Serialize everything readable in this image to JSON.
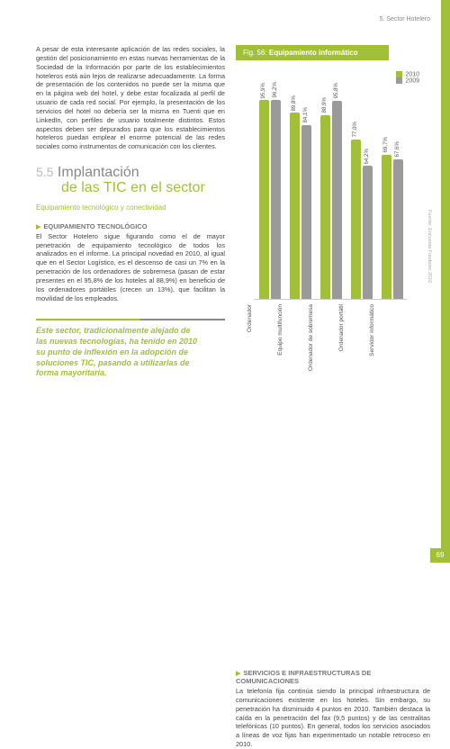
{
  "page": {
    "header": "5. Sector Hotelero",
    "number": "69"
  },
  "left": {
    "para1": "A pesar de esta interesante aplicación de las redes sociales, la gestión del posicionamiento en estas nuevas herramientas de la Sociedad de la Información por parte de los establecimientos hoteleros está aún lejos de realizarse adecuadamente. La forma de presentación de los contenidos no puede ser la misma que en la página web del hotel, y debe estar focalizada al perfil de usuario de cada red social. Por ejemplo, la presentación de los servicios del hotel no debería ser la misma en Tuenti que en LinkedIn, con perfiles de usuario totalmente distintos. Estos aspectos deben ser depurados para que los establecimientos hoteleros puedan emplear el enorme potencial de las redes sociales como instrumentos de comunicación con los clientes.",
    "section_num": "5.5",
    "section_title_1": "Implantación",
    "section_title_2": "de las TIC en el sector",
    "subtitle": "Equipamiento tecnológico y conectividad",
    "subhead1": "EQUIPAMIENTO TECNOLÓGICO",
    "para2": "El Sector Hotelero sigue figurando como el de mayor penetración de equipamiento tecnológico de todos los analizados en el informe. La principal novedad en 2010, al igual que en el Sector Logístico, es el descenso de casi un 7% en la penetración de los ordenadores de sobremesa (pasan de estar presentes en el 95,8% de los hoteles al 88,9%) en beneficio de los ordenadores portátiles (crecen un 13%), que facilitan la movilidad de los empleados.",
    "pullquote": "Este sector, tradicionalmente alejado de las nuevas tecnologías, ha tenido en 2010 su punto de inflexión en la adopción de soluciones TIC, pasando a utilizarlas de forma mayoritaria."
  },
  "right": {
    "fig_label": "Fig. 56:",
    "fig_title": "Equipamiento informático",
    "subhead2": "SERVICIOS E INFRAESTRUCTURAS DE COMUNICACIONES",
    "para3": "La telefonía fija continúa siendo la principal infraestructura de comunicaciones existente en los hoteles. Sin embargo, su penetración ha disminuido 4 puntos en 2010. También destaca la caída en la penetración del fax (9,5 puntos) y de las centralitas telefónicas (10 puntos). En general, todos los servicios asociados a líneas de voz fijas han experimentado un notable retroceso en 2010.",
    "source": "Fuente: Encuesta Fundetec 2010"
  },
  "chart": {
    "legend": [
      {
        "label": "2010",
        "color": "#a2c037"
      },
      {
        "label": "2009",
        "color": "#9a9a9a"
      }
    ],
    "ylim": 100,
    "bar_colors": {
      "y2010": "#a2c037",
      "y2009": "#9a9a9a"
    },
    "groups": [
      {
        "cat": "Ordenador",
        "v2010": 95.9,
        "v2009": 96.2,
        "l2010": "95,9%",
        "l2009": "96,2%"
      },
      {
        "cat": "Equipo multifunción",
        "v2010": 89.8,
        "v2009": 84.1,
        "l2010": "89,8%",
        "l2009": "84,1%"
      },
      {
        "cat": "Ordenador de sobremesa",
        "v2010": 88.9,
        "v2009": 95.8,
        "l2010": "88,9%",
        "l2009": "95,8%"
      },
      {
        "cat": "Ordenador portátil",
        "v2010": 77.0,
        "v2009": 64.2,
        "l2010": "77,0%",
        "l2009": "64,2%"
      },
      {
        "cat": "Servidor informático",
        "v2010": 69.7,
        "v2009": 67.6,
        "l2010": "69,7%",
        "l2009": "67,6%"
      }
    ]
  }
}
